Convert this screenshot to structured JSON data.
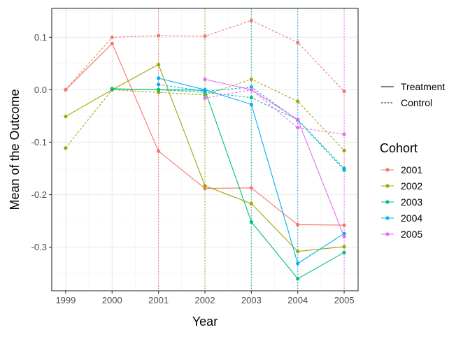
{
  "chart_data": {
    "type": "line",
    "xlabel": "Year",
    "ylabel": "Mean of the Outcome",
    "x": [
      1999,
      2000,
      2001,
      2002,
      2003,
      2004,
      2005
    ],
    "xlim": [
      1998.7,
      2005.3
    ],
    "ylim": [
      -0.383,
      0.155
    ],
    "x_ticks": [
      "1999",
      "2000",
      "2001",
      "2002",
      "2003",
      "2004",
      "2005"
    ],
    "y_ticks": [
      {
        "value": 0.1,
        "label": "0.1"
      },
      {
        "value": 0.0,
        "label": "0.0"
      },
      {
        "value": -0.1,
        "label": "-0.1"
      },
      {
        "value": -0.2,
        "label": "-0.2"
      },
      {
        "value": -0.3,
        "label": "-0.3"
      }
    ],
    "grid": true,
    "legend_position": "right",
    "linetype_legend": {
      "items": [
        {
          "label": "Treatment",
          "dash": "solid"
        },
        {
          "label": "Control",
          "dash": "dotted"
        }
      ]
    },
    "color_legend": {
      "title": "Cohort",
      "items": [
        {
          "label": "2001",
          "color": "#F8766D"
        },
        {
          "label": "2002",
          "color": "#A3A500"
        },
        {
          "label": "2003",
          "color": "#00BF7D"
        },
        {
          "label": "2004",
          "color": "#00B0F6"
        },
        {
          "label": "2005",
          "color": "#E76BF3"
        }
      ]
    },
    "series": [
      {
        "cohort": "2001",
        "group": "Treatment",
        "color": "#F8766D",
        "x": [
          1999,
          2000,
          2001,
          2002,
          2003,
          2004,
          2005
        ],
        "values": [
          0.0,
          0.088,
          -0.117,
          -0.188,
          -0.187,
          -0.257,
          -0.258
        ]
      },
      {
        "cohort": "2001",
        "group": "Control",
        "color": "#F8766D",
        "x": [
          1999,
          2000,
          2001,
          2002,
          2003,
          2004,
          2005
        ],
        "values": [
          0.0,
          0.1,
          0.103,
          0.102,
          0.132,
          0.09,
          -0.003
        ]
      },
      {
        "cohort": "2002",
        "group": "Treatment",
        "color": "#A3A500",
        "x": [
          1999,
          2000,
          2001,
          2002,
          2003,
          2004,
          2005
        ],
        "values": [
          -0.051,
          0.0,
          0.048,
          -0.183,
          -0.217,
          -0.308,
          -0.299
        ]
      },
      {
        "cohort": "2002",
        "group": "Control",
        "color": "#A3A500",
        "x": [
          1999,
          2000,
          2001,
          2002,
          2003,
          2004,
          2005
        ],
        "values": [
          -0.111,
          0.0,
          -0.005,
          -0.01,
          0.02,
          -0.022,
          -0.116
        ]
      },
      {
        "cohort": "2003",
        "group": "Treatment",
        "color": "#00BF7D",
        "x": [
          2000,
          2001,
          2002,
          2003,
          2004,
          2005
        ],
        "values": [
          0.002,
          0.0,
          -0.001,
          -0.252,
          -0.36,
          -0.31
        ]
      },
      {
        "cohort": "2003",
        "group": "Control",
        "color": "#00BF7D",
        "x": [
          2000,
          2001,
          2002,
          2003,
          2004,
          2005
        ],
        "values": [
          0.001,
          0.0,
          -0.005,
          -0.015,
          -0.057,
          -0.15
        ]
      },
      {
        "cohort": "2004",
        "group": "Treatment",
        "color": "#00B0F6",
        "x": [
          2001,
          2002,
          2003,
          2004,
          2005
        ],
        "values": [
          0.022,
          0.0,
          -0.028,
          -0.331,
          -0.274
        ]
      },
      {
        "cohort": "2004",
        "group": "Control",
        "color": "#00B0F6",
        "x": [
          2001,
          2002,
          2003,
          2004,
          2005
        ],
        "values": [
          0.01,
          -0.003,
          0.005,
          -0.058,
          -0.153
        ]
      },
      {
        "cohort": "2005",
        "group": "Treatment",
        "color": "#E76BF3",
        "x": [
          2002,
          2003,
          2004,
          2005
        ],
        "values": [
          0.02,
          0.0,
          -0.057,
          -0.28
        ]
      },
      {
        "cohort": "2005",
        "group": "Control",
        "color": "#E76BF3",
        "x": [
          2002,
          2003,
          2004,
          2005
        ],
        "values": [
          -0.016,
          0.0,
          -0.072,
          -0.085
        ]
      }
    ],
    "treatment_start_lines": [
      {
        "cohort": "2001",
        "x": 2001,
        "color": "#F8766D"
      },
      {
        "cohort": "2002",
        "x": 2002,
        "color": "#A3A500"
      },
      {
        "cohort": "2003",
        "x": 2003,
        "color": "#00BF7D"
      },
      {
        "cohort": "2004",
        "x": 2004,
        "color": "#00B0F6"
      },
      {
        "cohort": "2005",
        "x": 2005,
        "color": "#E76BF3"
      }
    ]
  }
}
